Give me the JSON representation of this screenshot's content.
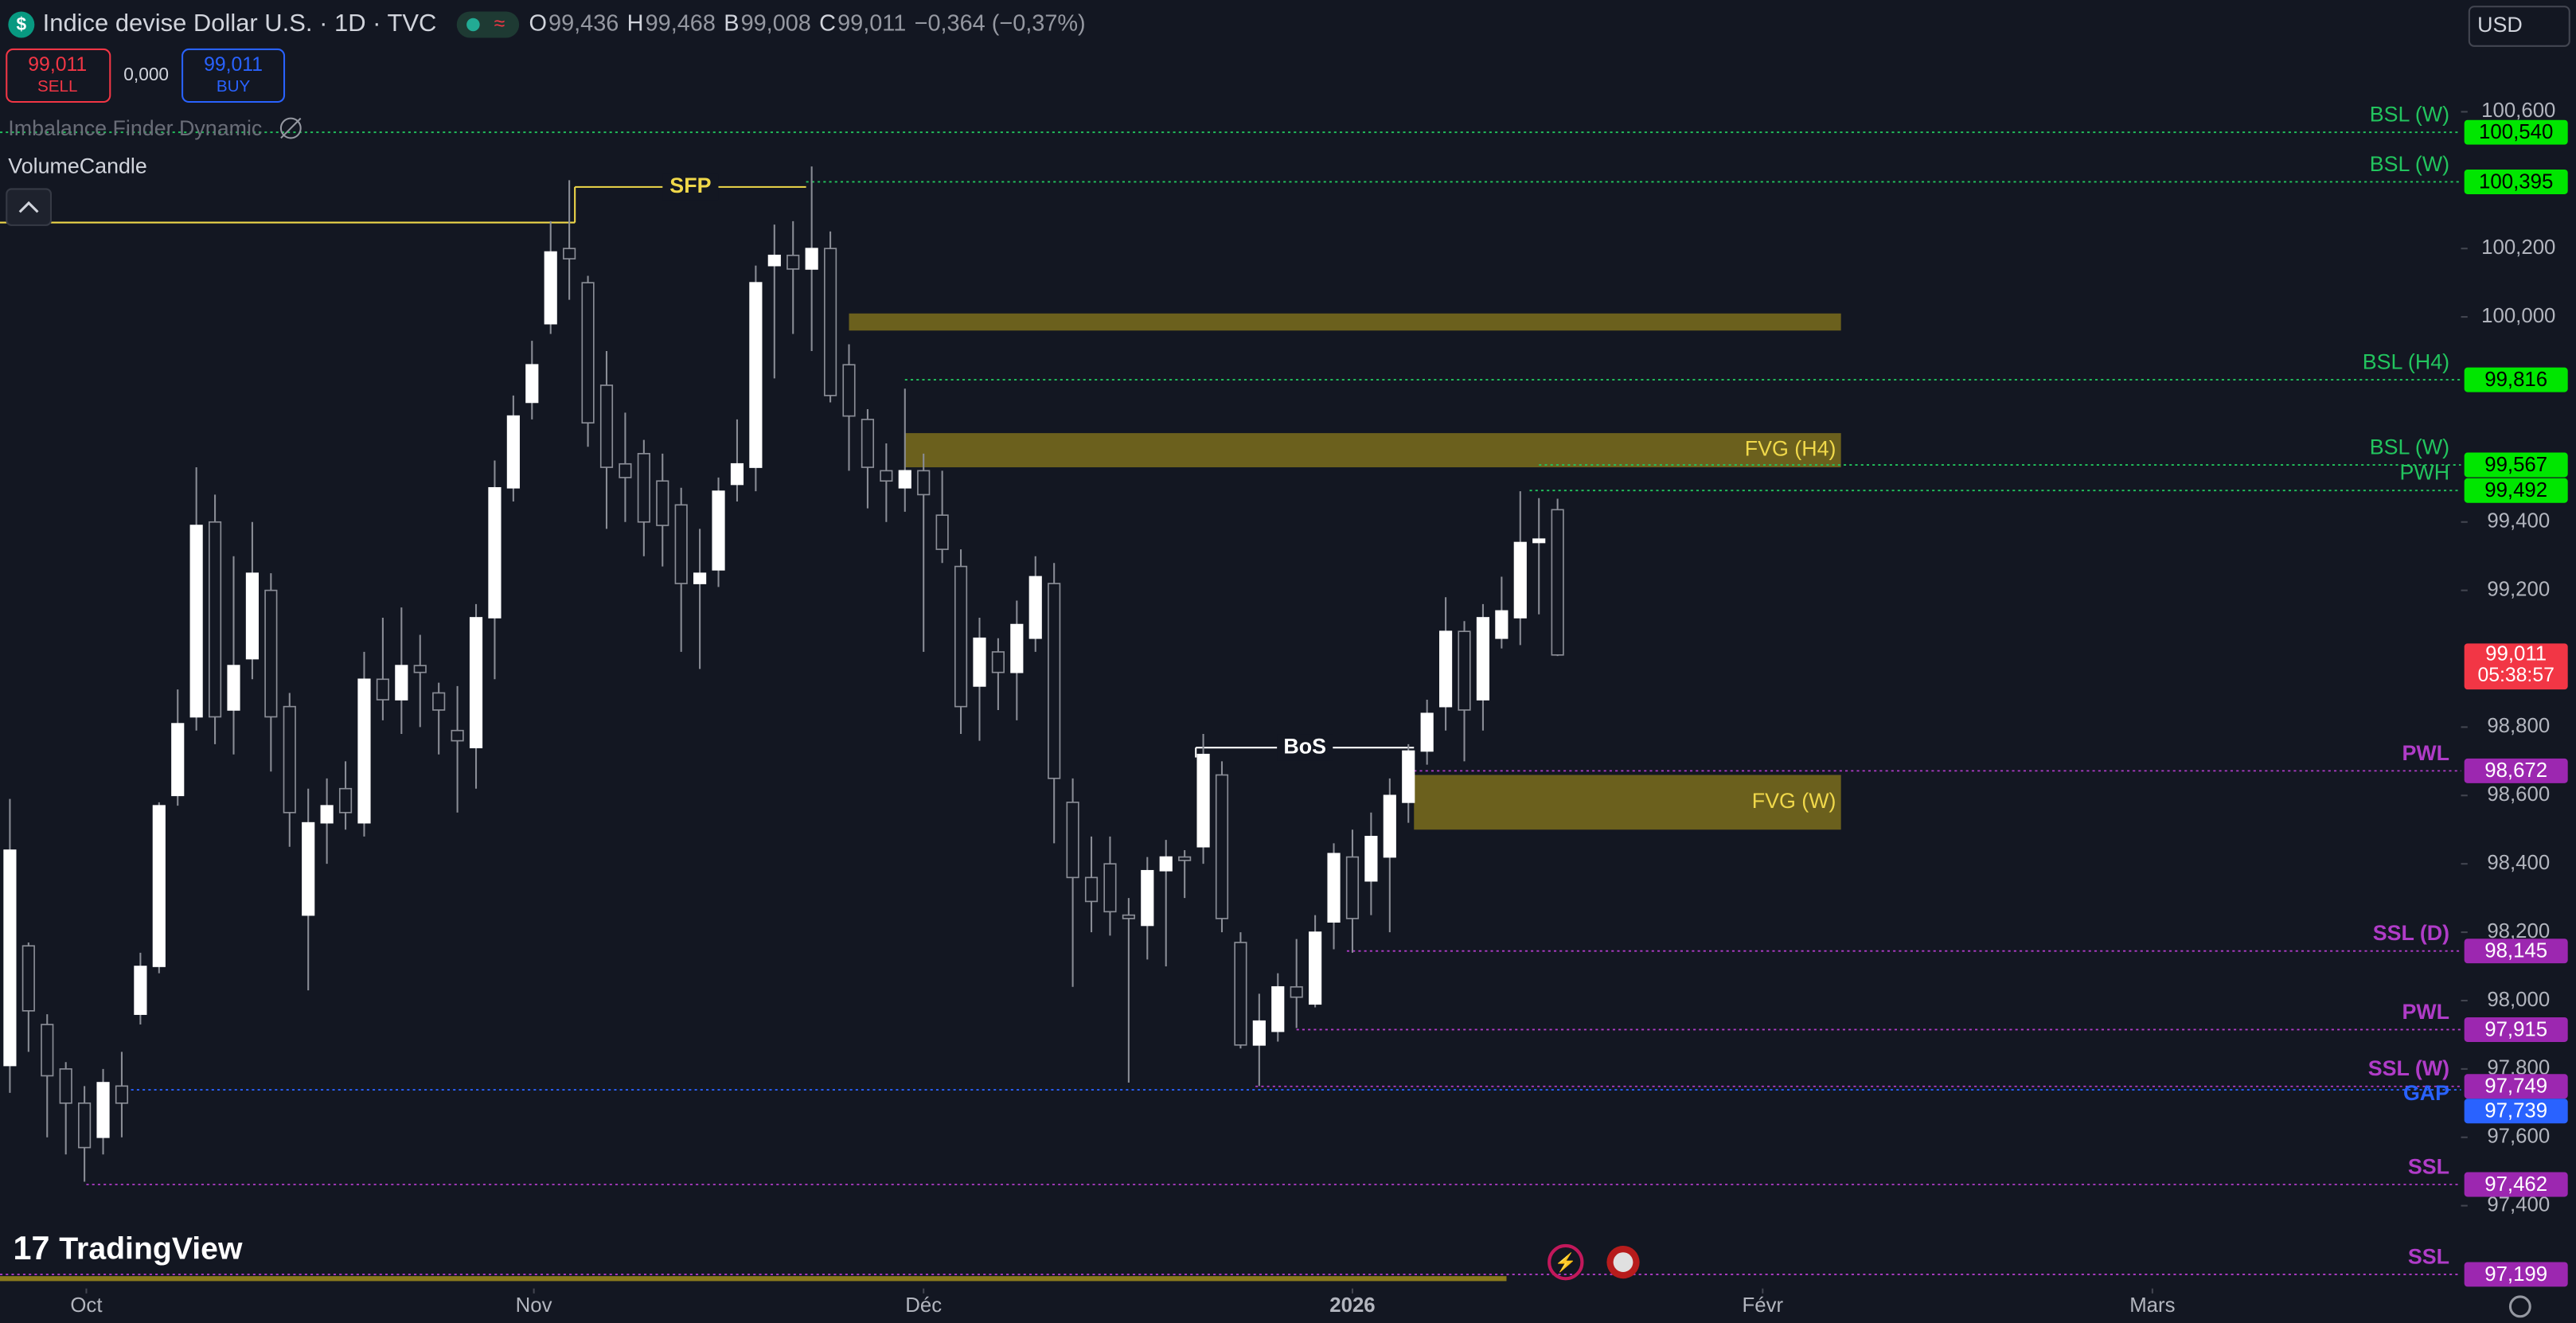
{
  "header": {
    "title": "Indice devise Dollar U.S. · 1D · TVC",
    "ohlc": [
      {
        "key": "O",
        "value": "99,436"
      },
      {
        "key": "H",
        "value": "99,468"
      },
      {
        "key": "B",
        "value": "99,008"
      },
      {
        "key": "C",
        "value": "99,011"
      }
    ],
    "change": "−0,364 (−0,37%)",
    "sell": {
      "price": "99,011",
      "label": "SELL"
    },
    "spread": "0,000",
    "buy": {
      "price": "99,011",
      "label": "BUY"
    },
    "indicators": [
      "Imbalance Finder Dynamic",
      "VolumeCandle"
    ],
    "currency": "USD",
    "brand": "TradingView"
  },
  "chart_data": {
    "type": "candlestick",
    "xlim": [
      -0.53,
      131.45
    ],
    "xticks": [
      {
        "value": 4.1,
        "label": "Oct"
      },
      {
        "value": 28.1,
        "label": "Nov"
      },
      {
        "value": 49,
        "label": "Déc"
      },
      {
        "value": 72,
        "label": "2026"
      },
      {
        "value": 94,
        "label": "Févr"
      },
      {
        "value": 114.9,
        "label": "Mars"
      }
    ],
    "ylim": [
      97.177,
      100.927
    ],
    "yticks": [
      {
        "value": 100.6,
        "label": "100,600"
      },
      {
        "value": 100.2,
        "label": "100,200"
      },
      {
        "value": 100.0,
        "label": "100,000"
      },
      {
        "value": 99.4,
        "label": "99,400"
      },
      {
        "value": 99.2,
        "label": "99,200"
      },
      {
        "value": 98.8,
        "label": "98,800"
      },
      {
        "value": 98.6,
        "label": "98,600"
      },
      {
        "value": 98.4,
        "label": "98,400"
      },
      {
        "value": 98.2,
        "label": "98,200"
      },
      {
        "value": 98.0,
        "label": "98,000"
      },
      {
        "value": 97.8,
        "label": "97,800"
      },
      {
        "value": 97.6,
        "label": "97,600"
      },
      {
        "value": 97.4,
        "label": "97,400"
      }
    ],
    "grid": false,
    "up_color": "#ffffff",
    "down_color": "#131722",
    "wick_color": "#8a8d96",
    "open": [
      97.81,
      98.16,
      97.93,
      97.8,
      97.7,
      97.6,
      97.75,
      97.96,
      98.1,
      98.6,
      98.83,
      99.4,
      98.85,
      99.0,
      99.2,
      98.86,
      98.25,
      98.52,
      98.62,
      98.52,
      98.94,
      98.88,
      98.98,
      98.9,
      98.79,
      98.74,
      99.12,
      99.5,
      99.75,
      99.98,
      100.2,
      100.1,
      99.8,
      99.57,
      99.6,
      99.52,
      99.45,
      99.22,
      99.26,
      99.51,
      99.56,
      100.15,
      100.18,
      100.14,
      100.2,
      99.86,
      99.7,
      99.55,
      99.5,
      99.55,
      99.42,
      99.27,
      98.92,
      99.02,
      98.96,
      99.06,
      99.22,
      98.58,
      98.36,
      98.4,
      98.25,
      98.22,
      98.38,
      98.42,
      98.45,
      98.66,
      98.17,
      97.87,
      97.91,
      98.04,
      97.99,
      98.23,
      98.42,
      98.35,
      98.42,
      98.58,
      98.73,
      98.86,
      99.08,
      98.88,
      99.06,
      99.12,
      99.34,
      99.436
    ],
    "high": [
      98.59,
      98.17,
      97.96,
      97.82,
      97.75,
      97.8,
      97.85,
      98.14,
      98.58,
      98.91,
      99.56,
      99.48,
      99.3,
      99.4,
      99.25,
      98.9,
      98.62,
      98.65,
      98.7,
      99.02,
      99.12,
      99.15,
      99.07,
      98.93,
      98.92,
      99.16,
      99.58,
      99.77,
      99.93,
      100.28,
      100.4,
      100.12,
      99.9,
      99.72,
      99.64,
      99.6,
      99.5,
      99.38,
      99.53,
      99.7,
      100.15,
      100.27,
      100.28,
      100.44,
      100.25,
      99.92,
      99.73,
      99.63,
      99.79,
      99.6,
      99.55,
      99.32,
      99.12,
      99.06,
      99.17,
      99.3,
      99.28,
      98.65,
      98.48,
      98.48,
      98.3,
      98.42,
      98.47,
      98.44,
      98.78,
      98.7,
      98.2,
      98.02,
      98.08,
      98.18,
      98.25,
      98.46,
      98.5,
      98.55,
      98.65,
      98.75,
      98.88,
      99.18,
      99.11,
      99.16,
      99.24,
      99.49,
      99.47,
      99.468
    ],
    "low": [
      97.73,
      97.85,
      97.6,
      97.55,
      97.47,
      97.55,
      97.6,
      97.93,
      98.08,
      98.57,
      98.79,
      98.75,
      98.72,
      98.94,
      98.67,
      98.45,
      98.03,
      98.4,
      98.5,
      98.48,
      98.82,
      98.78,
      98.8,
      98.72,
      98.55,
      98.62,
      98.94,
      99.46,
      99.7,
      99.95,
      100.05,
      99.62,
      99.38,
      99.4,
      99.3,
      99.27,
      99.02,
      98.97,
      99.21,
      99.46,
      99.49,
      99.82,
      99.95,
      99.9,
      99.75,
      99.55,
      99.44,
      99.4,
      99.43,
      99.02,
      99.28,
      98.78,
      98.76,
      98.85,
      98.82,
      99.02,
      98.46,
      98.04,
      98.2,
      98.19,
      97.76,
      98.12,
      98.1,
      98.3,
      98.4,
      98.2,
      97.86,
      97.75,
      97.88,
      97.92,
      97.98,
      98.15,
      98.14,
      98.25,
      98.2,
      98.52,
      98.69,
      98.79,
      98.7,
      98.79,
      99.03,
      99.04,
      99.13,
      99.008
    ],
    "close": [
      98.44,
      97.97,
      97.78,
      97.7,
      97.57,
      97.76,
      97.7,
      98.1,
      98.57,
      98.81,
      99.39,
      98.83,
      98.98,
      99.25,
      98.83,
      98.55,
      98.52,
      98.57,
      98.55,
      98.94,
      98.88,
      98.98,
      98.96,
      98.85,
      98.76,
      99.12,
      99.5,
      99.71,
      99.86,
      100.19,
      100.17,
      99.69,
      99.56,
      99.53,
      99.4,
      99.39,
      99.22,
      99.25,
      99.49,
      99.57,
      100.1,
      100.18,
      100.14,
      100.2,
      99.77,
      99.71,
      99.56,
      99.52,
      99.55,
      99.48,
      99.32,
      98.86,
      99.06,
      98.96,
      99.1,
      99.24,
      98.65,
      98.36,
      98.29,
      98.26,
      98.24,
      98.38,
      98.42,
      98.41,
      98.72,
      98.24,
      97.87,
      97.94,
      98.04,
      98.01,
      98.2,
      98.43,
      98.24,
      98.48,
      98.6,
      98.73,
      98.84,
      99.08,
      98.85,
      99.12,
      99.14,
      99.34,
      99.35,
      99.011
    ],
    "levels": [
      {
        "name": "BSL (W)",
        "value": 100.54,
        "label": "100,540",
        "from": -0.53,
        "color": "#22c55e",
        "tag_color": "#00e600",
        "tag_text": "#000000"
      },
      {
        "name": "BSL (W)",
        "value": 100.395,
        "label": "100,395",
        "from": 42.7,
        "color": "#22c55e",
        "tag_color": "#00e600",
        "tag_text": "#000000"
      },
      {
        "name": "BSL (H4)",
        "value": 99.816,
        "label": "99,816",
        "from": 48,
        "color": "#22c55e",
        "tag_color": "#00e600",
        "tag_text": "#000000"
      },
      {
        "name": "BSL (W)",
        "value": 99.567,
        "label": "99,567",
        "from": 82,
        "color": "#22c55e",
        "tag_color": "#00e600",
        "tag_text": "#000000"
      },
      {
        "name": "PWH",
        "value": 99.492,
        "label": "99,492",
        "from": 81.5,
        "color": "#22c55e",
        "tag_color": "#00e600",
        "tag_text": "#000000"
      },
      {
        "name": "PWL",
        "value": 98.672,
        "label": "98,672",
        "from": 75.3,
        "color": "#b03cc8",
        "tag_color": "#9c27b0",
        "tag_text": "#ffffff"
      },
      {
        "name": "SSL (D)",
        "value": 98.145,
        "label": "98,145",
        "from": 71.7,
        "color": "#b03cc8",
        "tag_color": "#9c27b0",
        "tag_text": "#ffffff"
      },
      {
        "name": "PWL",
        "value": 97.915,
        "label": "97,915",
        "from": 69,
        "color": "#b03cc8",
        "tag_color": "#9c27b0",
        "tag_text": "#ffffff"
      },
      {
        "name": "SSL (W)",
        "value": 97.749,
        "label": "97,749",
        "from": 66.8,
        "color": "#b03cc8",
        "tag_color": "#9c27b0",
        "tag_text": "#ffffff"
      },
      {
        "name": "GAP",
        "value": 97.739,
        "label": "97,739",
        "from": 6.5,
        "color": "#2962ff",
        "tag_color": "#2962ff",
        "tag_text": "#ffffff"
      },
      {
        "name": "SSL",
        "value": 97.462,
        "label": "97,462",
        "from": 4.1,
        "color": "#b03cc8",
        "tag_color": "#9c27b0",
        "tag_text": "#ffffff"
      },
      {
        "name": "SSL",
        "value": 97.199,
        "label": "97,199",
        "from": -0.53,
        "color": "#b03cc8",
        "tag_color": "#9c27b0",
        "tag_text": "#ffffff"
      }
    ],
    "zones": [
      {
        "top": 100.01,
        "bottom": 99.96,
        "from": 45,
        "to": 98.2
      },
      {
        "label": "FVG (H4)",
        "top": 99.66,
        "bottom": 99.56,
        "from": 48,
        "to": 98.2
      },
      {
        "label": "FVG (W)",
        "top": 98.66,
        "bottom": 98.5,
        "from": 75.3,
        "to": 98.2
      }
    ],
    "zone_color": "#8a7a1c",
    "annotations": [
      {
        "text": "SFP",
        "value": 100.38,
        "base": 100.276,
        "from": 30.3,
        "to": 42.7,
        "color": "#f0d84a"
      },
      {
        "text": "BoS",
        "value": 98.74,
        "from": 63.6,
        "to": 75.3,
        "color": "#ffffff"
      }
    ],
    "last_price": {
      "value": 99.011,
      "label": "99,011",
      "countdown": "05:38:57",
      "color": "#f23645"
    }
  }
}
